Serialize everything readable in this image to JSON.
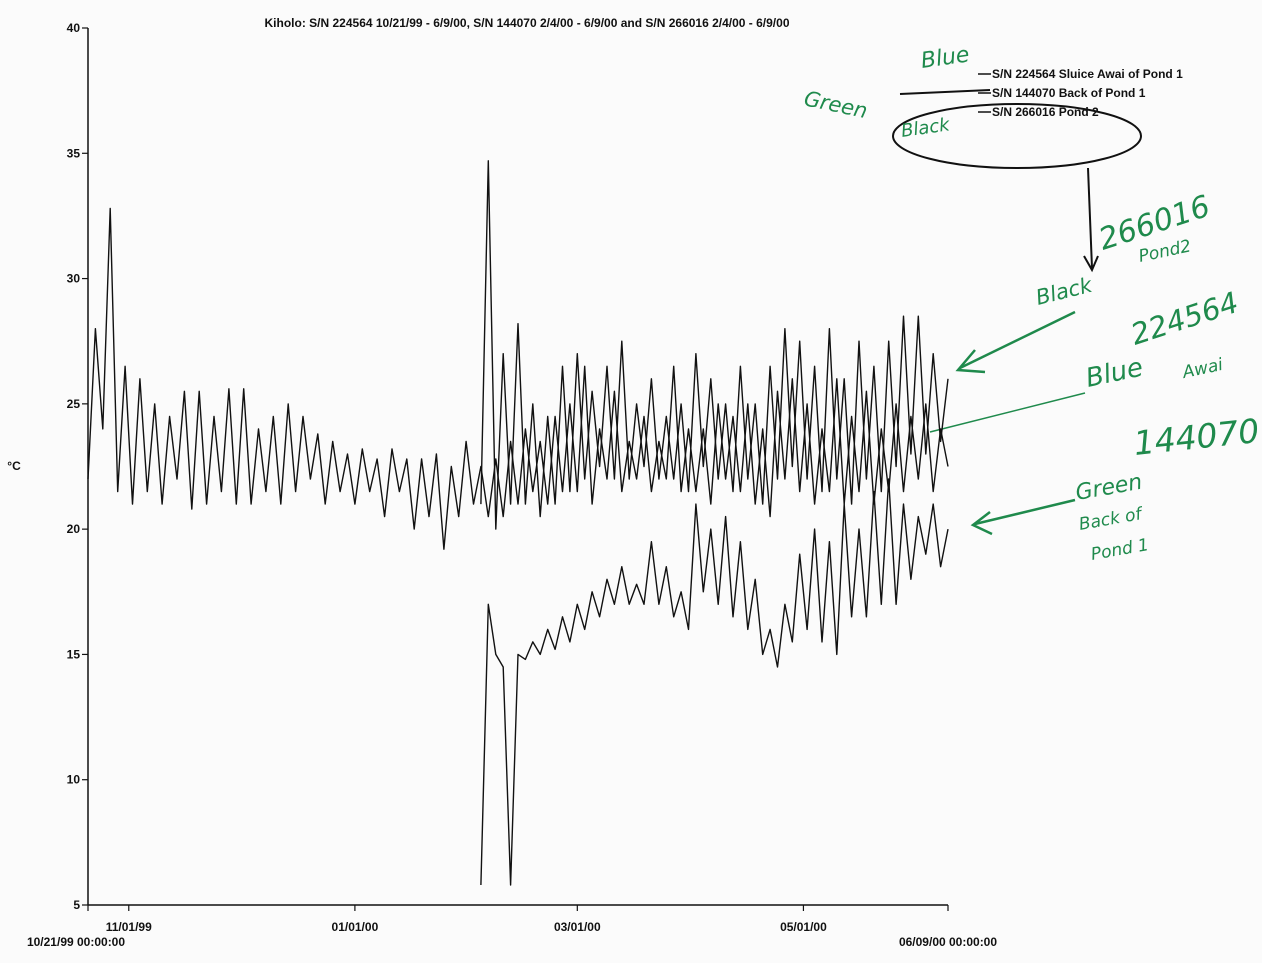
{
  "chart_data": {
    "type": "line",
    "title": "Kiholo: S/N 224564 10/21/99 - 6/9/00, S/N 144070 2/4/00 - 6/9/00 and S/N 266016 2/4/00 - 6/9/00",
    "y_label": "°C",
    "legend": "upper right",
    "grid": false,
    "xlim": [
      "1999-10-21",
      "2000-06-09"
    ],
    "xticks": [
      {
        "value": "1999-10-21",
        "label": "10/21/99 00:00:00"
      },
      {
        "value": "1999-11-01",
        "label": "11/01/99"
      },
      {
        "value": "2000-01-01",
        "label": "01/01/00"
      },
      {
        "value": "2000-03-01",
        "label": "03/01/00"
      },
      {
        "value": "2000-05-01",
        "label": "05/01/00"
      },
      {
        "value": "2000-06-09",
        "label": "06/09/00 00:00:00"
      }
    ],
    "ylim": [
      5,
      40
    ],
    "yticks": [
      5,
      10,
      15,
      20,
      25,
      30,
      35,
      40
    ],
    "x": [
      "1999-10-21",
      "1999-10-23",
      "1999-10-25",
      "1999-10-27",
      "1999-10-29",
      "1999-10-31",
      "1999-11-02",
      "1999-11-04",
      "1999-11-06",
      "1999-11-08",
      "1999-11-10",
      "1999-11-12",
      "1999-11-14",
      "1999-11-16",
      "1999-11-18",
      "1999-11-20",
      "1999-11-22",
      "1999-11-24",
      "1999-11-26",
      "1999-11-28",
      "1999-11-30",
      "1999-12-02",
      "1999-12-04",
      "1999-12-06",
      "1999-12-08",
      "1999-12-10",
      "1999-12-12",
      "1999-12-14",
      "1999-12-16",
      "1999-12-18",
      "1999-12-20",
      "1999-12-22",
      "1999-12-24",
      "1999-12-26",
      "1999-12-28",
      "1999-12-30",
      "2000-01-01",
      "2000-01-03",
      "2000-01-05",
      "2000-01-07",
      "2000-01-09",
      "2000-01-11",
      "2000-01-13",
      "2000-01-15",
      "2000-01-17",
      "2000-01-19",
      "2000-01-21",
      "2000-01-23",
      "2000-01-25",
      "2000-01-27",
      "2000-01-29",
      "2000-01-31",
      "2000-02-02",
      "2000-02-04",
      "2000-02-06",
      "2000-02-08",
      "2000-02-10",
      "2000-02-12",
      "2000-02-14",
      "2000-02-16",
      "2000-02-18",
      "2000-02-20",
      "2000-02-22",
      "2000-02-24",
      "2000-02-26",
      "2000-02-28",
      "2000-03-01",
      "2000-03-03",
      "2000-03-05",
      "2000-03-07",
      "2000-03-09",
      "2000-03-11",
      "2000-03-13",
      "2000-03-15",
      "2000-03-17",
      "2000-03-19",
      "2000-03-21",
      "2000-03-23",
      "2000-03-25",
      "2000-03-27",
      "2000-03-29",
      "2000-03-31",
      "2000-04-02",
      "2000-04-04",
      "2000-04-06",
      "2000-04-08",
      "2000-04-10",
      "2000-04-12",
      "2000-04-14",
      "2000-04-16",
      "2000-04-18",
      "2000-04-20",
      "2000-04-22",
      "2000-04-24",
      "2000-04-26",
      "2000-04-28",
      "2000-04-30",
      "2000-05-02",
      "2000-05-04",
      "2000-05-06",
      "2000-05-08",
      "2000-05-10",
      "2000-05-12",
      "2000-05-14",
      "2000-05-16",
      "2000-05-18",
      "2000-05-20",
      "2000-05-22",
      "2000-05-24",
      "2000-05-26",
      "2000-05-28",
      "2000-05-30",
      "2000-06-01",
      "2000-06-03",
      "2000-06-05",
      "2000-06-07",
      "2000-06-09"
    ],
    "series": [
      {
        "name": "S/N 224564 Sluice Awai of Pond 1",
        "color": "#111111",
        "values": [
          22,
          28,
          24,
          32.8,
          21.5,
          26.5,
          21,
          26,
          21.5,
          25,
          21,
          24.5,
          22,
          25.5,
          20.8,
          25.5,
          21,
          24.5,
          21.5,
          25.6,
          21,
          25.6,
          21,
          24,
          21.5,
          24.5,
          21,
          25,
          21.5,
          24.5,
          22,
          23.8,
          21,
          23.5,
          21.5,
          23,
          21,
          23.2,
          21.5,
          22.8,
          20.5,
          23.2,
          21.5,
          22.8,
          20,
          22.8,
          20.5,
          23,
          19.2,
          22.5,
          20.5,
          23.5,
          21,
          22.5,
          20.5,
          22.8,
          20.5,
          23.5,
          21,
          24,
          21.5,
          23.5,
          21,
          24.5,
          21.5,
          25,
          21.5,
          26.5,
          21,
          24,
          22,
          25.5,
          21.5,
          23.5,
          22,
          24.5,
          21.5,
          23.5,
          22,
          26.5,
          21.5,
          24,
          21.5,
          24,
          21,
          25,
          22,
          24.5,
          21.5,
          25,
          21,
          24,
          20.5,
          25.5,
          22,
          26,
          21.5,
          25,
          21,
          24,
          21.5,
          26,
          21,
          24.5,
          21.5,
          25.5,
          21,
          24,
          21.5,
          25,
          21.5,
          24.5,
          22,
          25,
          21.5,
          24,
          22.5
        ]
      },
      {
        "name": "S/N 144070 Back of Pond 1",
        "color": "#111111",
        "values": [
          null,
          null,
          null,
          null,
          null,
          null,
          null,
          null,
          null,
          null,
          null,
          null,
          null,
          null,
          null,
          null,
          null,
          null,
          null,
          null,
          null,
          null,
          null,
          null,
          null,
          null,
          null,
          null,
          null,
          null,
          null,
          null,
          null,
          null,
          null,
          null,
          null,
          null,
          null,
          null,
          null,
          null,
          null,
          null,
          null,
          null,
          null,
          null,
          null,
          null,
          null,
          null,
          null,
          5.8,
          17,
          15,
          14.5,
          5.8,
          15,
          14.8,
          15.5,
          15,
          16,
          15.2,
          16.5,
          15.5,
          17,
          16,
          17.5,
          16.5,
          18,
          17,
          18.5,
          17,
          17.8,
          17,
          19.5,
          17,
          18.5,
          16.5,
          17.5,
          16,
          21,
          17.5,
          20,
          17,
          20.5,
          16.5,
          19.5,
          16,
          18,
          15,
          16,
          14.5,
          17,
          15.5,
          19,
          16,
          20,
          15.5,
          19.5,
          15,
          21,
          16.5,
          20,
          16.5,
          21.5,
          17,
          22,
          17,
          21,
          18,
          20.5,
          19,
          21,
          18.5,
          20
        ]
      },
      {
        "name": "S/N 266016 Pond 2",
        "color": "#111111",
        "values": [
          null,
          null,
          null,
          null,
          null,
          null,
          null,
          null,
          null,
          null,
          null,
          null,
          null,
          null,
          null,
          null,
          null,
          null,
          null,
          null,
          null,
          null,
          null,
          null,
          null,
          null,
          null,
          null,
          null,
          null,
          null,
          null,
          null,
          null,
          null,
          null,
          null,
          null,
          null,
          null,
          null,
          null,
          null,
          null,
          null,
          null,
          null,
          null,
          null,
          null,
          null,
          null,
          null,
          21,
          34.7,
          20,
          27,
          21,
          28.2,
          21,
          25,
          20.5,
          24.5,
          21,
          26.5,
          21.5,
          27,
          22,
          25.5,
          22.5,
          26.5,
          22,
          27.5,
          22,
          25,
          22.5,
          26,
          22,
          24.5,
          22,
          25,
          21.5,
          27,
          22.5,
          26,
          22,
          25,
          21.5,
          26.5,
          22,
          25,
          21,
          26.5,
          22,
          28,
          22.5,
          27.5,
          22,
          26.5,
          21.5,
          28,
          22,
          26,
          21,
          27.5,
          22,
          26.5,
          21.5,
          27.5,
          22.5,
          28.5,
          23,
          28.5,
          23,
          27,
          23.5,
          26
        ]
      }
    ],
    "annotations": [
      "Blue",
      "Green",
      "Black",
      "266016",
      "Pond2",
      "Black",
      "224564",
      "Blue",
      "Awai",
      "144070",
      "Green",
      "Back of",
      "Pond 1"
    ]
  }
}
